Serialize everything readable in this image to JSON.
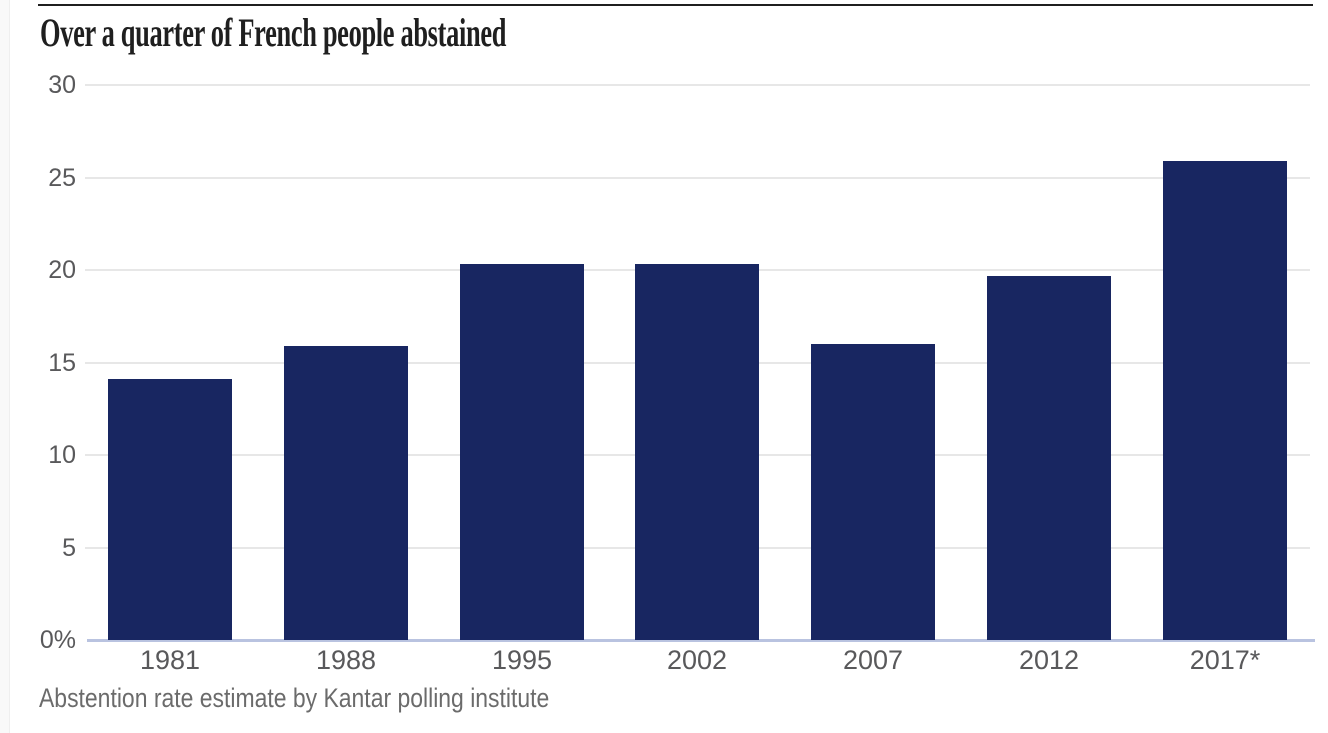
{
  "page": {
    "title": "Over a quarter of French people abstained",
    "caption": "Abstention rate estimate by Kantar polling institute"
  },
  "chart_data": {
    "type": "bar",
    "title": "Over a quarter of French people abstained",
    "caption": "Abstention rate estimate by Kantar polling institute",
    "categories": [
      "1981",
      "1988",
      "1995",
      "2002",
      "2007",
      "2012",
      "2017*"
    ],
    "values": [
      14.1,
      15.9,
      20.3,
      20.3,
      16.0,
      19.7,
      25.9
    ],
    "unit": "%",
    "xlabel": "",
    "ylabel": "",
    "ylim": [
      0,
      30
    ],
    "ytick_step": 5,
    "ytick_labels": [
      "30",
      "25",
      "20",
      "15",
      "10",
      "5",
      "0%"
    ],
    "grid": true,
    "legend": "none",
    "colors": {
      "bar": "#182661",
      "gridline": "#e7e7e7",
      "axis_line": "#b9c3e0",
      "tick_label": "#59595b",
      "caption": "#6b6b6b",
      "title": "#1f1f1f",
      "top_rule": "#1f1f1f",
      "background": "#ffffff"
    }
  }
}
